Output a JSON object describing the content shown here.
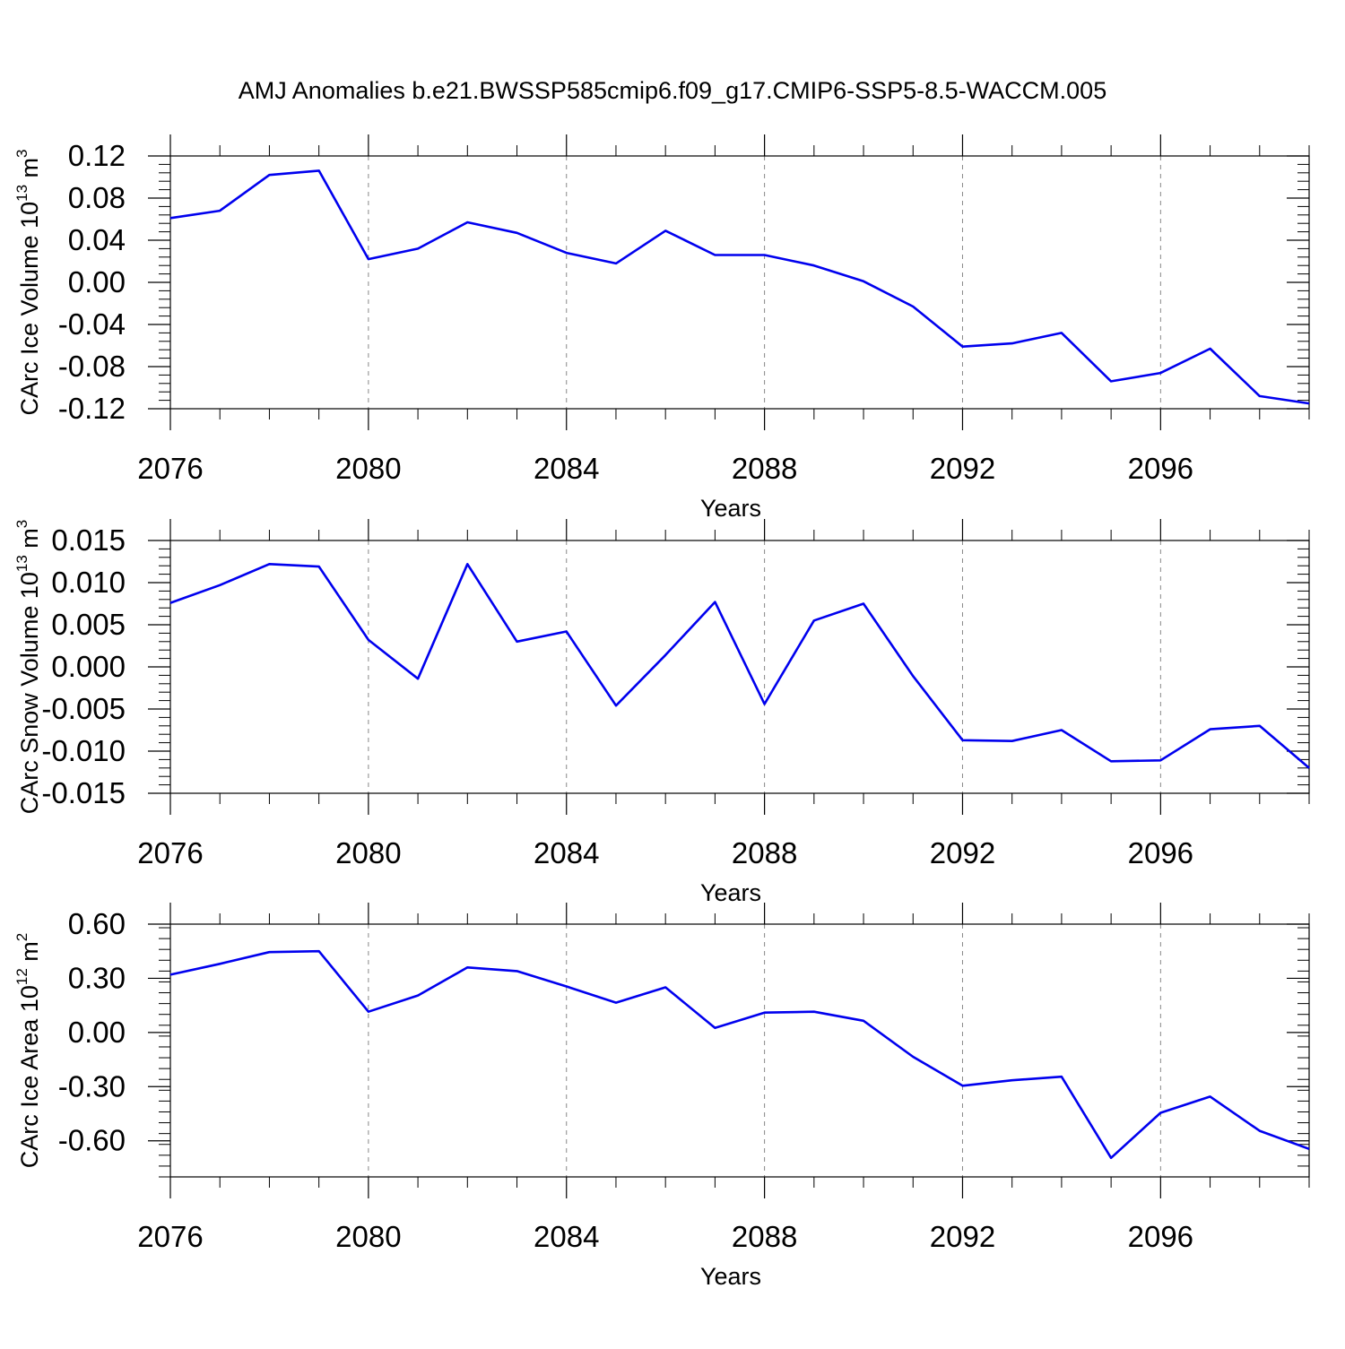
{
  "title": "AMJ Anomalies b.e21.BWSSP585cmip6.f09_g17.CMIP6-SSP5-8.5-WACCM.005",
  "colors": {
    "line": "#0000ee",
    "axis": "#000000",
    "grid": "#888888"
  },
  "chart_data": [
    {
      "type": "line",
      "ylabel": "CArc Ice Volume 10",
      "ylabel_exp": "13",
      "ylabel_unit": " m",
      "ylabel_unit_exp": "3",
      "xlabel": "Years",
      "xlim": [
        2076,
        2099
      ],
      "ylim": [
        -0.12,
        0.12
      ],
      "xticks": [
        2076,
        2080,
        2084,
        2088,
        2092,
        2096
      ],
      "xtick_labels": [
        "2076",
        "2080",
        "2084",
        "2088",
        "2092",
        "2096"
      ],
      "yticks": [
        0.12,
        0.08,
        0.04,
        0.0,
        -0.04,
        -0.08,
        -0.12
      ],
      "ytick_labels": [
        "0.12",
        "0.08",
        "0.04",
        "0.00",
        "-0.04",
        "-0.08",
        "-0.12"
      ],
      "grid": "vertical-dashed",
      "x": [
        2076,
        2077,
        2078,
        2079,
        2080,
        2081,
        2082,
        2083,
        2084,
        2085,
        2086,
        2087,
        2088,
        2089,
        2090,
        2091,
        2092,
        2093,
        2094,
        2095,
        2096,
        2097,
        2098,
        2099
      ],
      "values": [
        0.061,
        0.068,
        0.102,
        0.106,
        0.022,
        0.032,
        0.057,
        0.047,
        0.028,
        0.018,
        0.049,
        0.026,
        0.026,
        0.016,
        0.001,
        -0.023,
        -0.061,
        -0.058,
        -0.048,
        -0.094,
        -0.086,
        -0.063,
        -0.108,
        -0.115
      ]
    },
    {
      "type": "line",
      "ylabel": "CArc Snow Volume 10",
      "ylabel_exp": "13",
      "ylabel_unit": " m",
      "ylabel_unit_exp": "3",
      "xlabel": "Years",
      "xlim": [
        2076,
        2099
      ],
      "ylim": [
        -0.015,
        0.015
      ],
      "xticks": [
        2076,
        2080,
        2084,
        2088,
        2092,
        2096
      ],
      "xtick_labels": [
        "2076",
        "2080",
        "2084",
        "2088",
        "2092",
        "2096"
      ],
      "yticks": [
        0.015,
        0.01,
        0.005,
        0.0,
        -0.005,
        -0.01,
        -0.015
      ],
      "ytick_labels": [
        "0.015",
        "0.010",
        "0.005",
        "0.000",
        "-0.005",
        "-0.010",
        "-0.015"
      ],
      "grid": "vertical-dashed",
      "x": [
        2076,
        2077,
        2078,
        2079,
        2080,
        2081,
        2082,
        2083,
        2084,
        2085,
        2086,
        2087,
        2088,
        2089,
        2090,
        2091,
        2092,
        2093,
        2094,
        2095,
        2096,
        2097,
        2098,
        2099
      ],
      "values": [
        0.0076,
        0.0097,
        0.0122,
        0.0119,
        0.0032,
        -0.0014,
        0.0122,
        0.003,
        0.0042,
        -0.0046,
        0.0014,
        0.0077,
        -0.0044,
        0.0055,
        0.0075,
        -0.0011,
        -0.0087,
        -0.0088,
        -0.0075,
        -0.0112,
        -0.0111,
        -0.0074,
        -0.007,
        -0.012
      ]
    },
    {
      "type": "line",
      "ylabel": "CArc Ice Area 10",
      "ylabel_exp": "12",
      "ylabel_unit": " m",
      "ylabel_unit_exp": "2",
      "xlabel": "Years",
      "xlim": [
        2076,
        2099
      ],
      "ylim": [
        -0.8,
        0.6
      ],
      "xticks": [
        2076,
        2080,
        2084,
        2088,
        2092,
        2096
      ],
      "xtick_labels": [
        "2076",
        "2080",
        "2084",
        "2088",
        "2092",
        "2096"
      ],
      "yticks": [
        0.6,
        0.3,
        0.0,
        -0.3,
        -0.6
      ],
      "ytick_labels": [
        "0.60",
        "0.30",
        "0.00",
        "-0.30",
        "-0.60"
      ],
      "grid": "vertical-dashed",
      "x": [
        2076,
        2077,
        2078,
        2079,
        2080,
        2081,
        2082,
        2083,
        2084,
        2085,
        2086,
        2087,
        2088,
        2089,
        2090,
        2091,
        2092,
        2093,
        2094,
        2095,
        2096,
        2097,
        2098,
        2099
      ],
      "values": [
        0.32,
        0.38,
        0.445,
        0.45,
        0.115,
        0.205,
        0.36,
        0.34,
        0.255,
        0.165,
        0.25,
        0.025,
        0.11,
        0.115,
        0.065,
        -0.135,
        -0.295,
        -0.265,
        -0.245,
        -0.695,
        -0.445,
        -0.355,
        -0.545,
        -0.645
      ]
    }
  ]
}
